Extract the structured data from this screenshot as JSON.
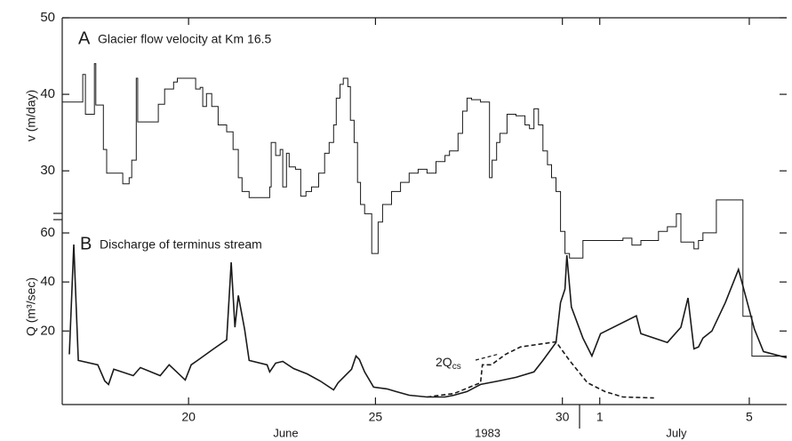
{
  "chart_data": [
    {
      "type": "line",
      "panel": "A",
      "title": "Glacier flow velocity at Km 16.5",
      "ylabel": "v (m/day)",
      "step": true,
      "color": "#1a1a1a",
      "xlim": [
        16.62,
        36
      ],
      "ylim": [
        2.6,
        50
      ],
      "yticks": [
        30,
        40,
        50
      ],
      "x": [
        16.62,
        17.17,
        17.24,
        17.48,
        17.52,
        17.72,
        17.81,
        18.24,
        18.41,
        18.48,
        18.6,
        18.64,
        19.19,
        19.36,
        19.6,
        19.7,
        20.19,
        20.31,
        20.38,
        20.48,
        20.62,
        20.79,
        21.02,
        21.19,
        21.33,
        21.43,
        21.62,
        22.17,
        22.21,
        22.33,
        22.45,
        22.52,
        22.62,
        22.69,
        22.86,
        23.0,
        23.14,
        23.29,
        23.48,
        23.64,
        23.76,
        23.88,
        23.95,
        24.05,
        24.14,
        24.26,
        24.33,
        24.43,
        24.52,
        24.6,
        24.71,
        24.9,
        25.07,
        25.19,
        25.43,
        25.67,
        25.9,
        26.14,
        26.38,
        26.62,
        26.86,
        26.98,
        27.21,
        27.33,
        27.45,
        27.57,
        27.81,
        28.05,
        28.12,
        28.24,
        28.33,
        28.52,
        28.76,
        29.0,
        29.12,
        29.24,
        29.36,
        29.48,
        29.6,
        29.71,
        29.83,
        29.95,
        30.07,
        30.19,
        30.55,
        31.62,
        31.86,
        32.1,
        32.57,
        32.81,
        33.05,
        33.17,
        33.52,
        33.64,
        33.76,
        34.12,
        34.83,
        35.07,
        36.0
      ],
      "values": [
        39,
        42.6,
        37.4,
        44,
        38.6,
        32.8,
        29.7,
        28.3,
        29.1,
        31.4,
        42.1,
        36.4,
        38.7,
        40.7,
        41.6,
        42.1,
        40.7,
        40.9,
        38.4,
        40.1,
        38.4,
        36,
        35.1,
        32.8,
        29.1,
        27.3,
        26.5,
        27.9,
        33.7,
        32,
        32.8,
        27.9,
        32.3,
        30.5,
        30.2,
        26.7,
        27.3,
        27.9,
        29.7,
        32.3,
        33.7,
        36,
        39.5,
        41.3,
        42.1,
        41,
        36.6,
        33.7,
        28.5,
        25.6,
        24.4,
        19.2,
        23.3,
        25.6,
        27.3,
        28.5,
        29.7,
        30.2,
        29.7,
        31.2,
        32,
        32.6,
        34.9,
        37.8,
        39.5,
        39.3,
        39,
        29.1,
        31.4,
        33.7,
        34.9,
        37.4,
        37.2,
        36,
        35.5,
        38.1,
        36,
        32.6,
        30.8,
        29.1,
        27.3,
        22.1,
        19.2,
        18.6,
        20.9,
        21.2,
        20.3,
        20.9,
        22.1,
        22.7,
        24.4,
        20.7,
        19.8,
        20.9,
        21.9,
        26.2,
        11,
        5.8,
        5.8
      ]
    },
    {
      "type": "line",
      "panel": "B",
      "title": "Discharge of terminus stream",
      "ylabel": "Q (m³/sec)",
      "xlim": [
        16.62,
        36
      ],
      "ylim": [
        -10,
        60
      ],
      "yticks": [
        20,
        40,
        60
      ],
      "xticks": [
        20,
        25,
        30,
        {
          "value": 31,
          "label": "1"
        },
        {
          "value": 35,
          "label": "5"
        }
      ],
      "x_group_labels": [
        {
          "text": "June",
          "x": 22.6
        },
        {
          "text": "1983",
          "x": 28
        },
        {
          "text": "July",
          "x": 33.05
        }
      ],
      "series": [
        {
          "color": "#1a1a1a",
          "dashed": false,
          "x": [
            16.81,
            16.93,
            17.05,
            17.57,
            17.76,
            17.86,
            18.0,
            18.52,
            18.71,
            19.24,
            19.48,
            19.91,
            20.07,
            20.24,
            20.67,
            21.02,
            21.14,
            21.24,
            21.33,
            21.5,
            21.62,
            22.1,
            22.17,
            22.33,
            22.52,
            22.81,
            23.17,
            23.52,
            23.88,
            24.0,
            24.36,
            24.48,
            24.57,
            24.71,
            24.95,
            25.31,
            25.55,
            25.9,
            26.38,
            26.86,
            27.1,
            27.45,
            27.81,
            28.29,
            28.76,
            29.24,
            29.48,
            29.83,
            29.95,
            30.07,
            30.12,
            30.24,
            30.55,
            30.79,
            31.02,
            31.98,
            32.1,
            32.81,
            33.17,
            33.36,
            33.52,
            33.64,
            33.76,
            34.0,
            34.36,
            34.71,
            35.14,
            35.38,
            36.0
          ],
          "values": [
            10.5,
            55.3,
            8,
            6.2,
            -0.4,
            -1.8,
            4.4,
            1.8,
            5.1,
            1.8,
            6.2,
            0,
            6.2,
            8,
            12.7,
            16.4,
            48,
            21.5,
            34.5,
            20.7,
            8,
            6.2,
            3.3,
            6.9,
            7.6,
            4.7,
            2.5,
            -0.4,
            -4,
            -1.1,
            4.4,
            9.8,
            8.4,
            3.3,
            -2.9,
            -3.6,
            -4.7,
            -6.2,
            -6.9,
            -6.9,
            -6.2,
            -4.7,
            -1.8,
            -0.4,
            1.1,
            3.3,
            8,
            15.3,
            31.6,
            37.1,
            50.9,
            29.8,
            17.1,
            9.8,
            18.9,
            26.2,
            18.9,
            15.3,
            21.5,
            33.5,
            12.7,
            13.5,
            17.1,
            20,
            31.6,
            45.1,
            20.7,
            11.6,
            9.1
          ]
        },
        {
          "color": "#1a1a1a",
          "dashed": true,
          "annotation": {
            "text": "2Q",
            "subscript": "cs"
          },
          "x": [
            26.38,
            27.1,
            27.81,
            27.86,
            28.1,
            28.48,
            28.88,
            29.83,
            30.19,
            30.67,
            31.14,
            31.62,
            32.45
          ],
          "values": [
            -6.9,
            -5.5,
            -1.1,
            6.2,
            6.2,
            10.5,
            13.5,
            15.6,
            8,
            -1.1,
            -4.7,
            -6.9,
            -7.3
          ]
        }
      ]
    }
  ]
}
